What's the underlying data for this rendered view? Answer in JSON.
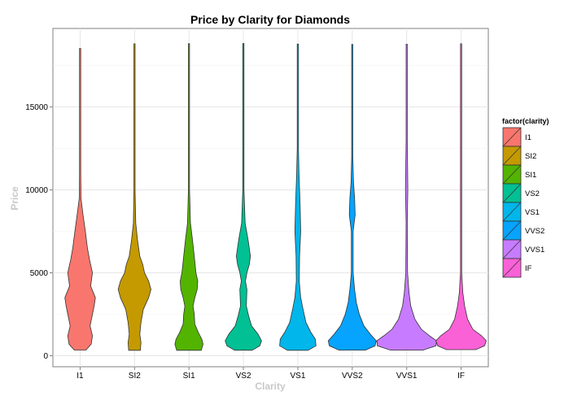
{
  "chart_data": {
    "type": "violin",
    "title": "Price by Clarity for Diamonds",
    "xlabel": "Clarity",
    "ylabel": "Price",
    "categories": [
      "I1",
      "SI2",
      "SI1",
      "VS2",
      "VS1",
      "VVS2",
      "VVS1",
      "IF"
    ],
    "yticks": [
      0,
      5000,
      10000,
      15000
    ],
    "ylim": [
      -700,
      19500
    ],
    "grid": true,
    "legend": {
      "title": "factor(clarity)",
      "position": "right",
      "entries": [
        "I1",
        "SI2",
        "SI1",
        "VS2",
        "VS1",
        "VVS2",
        "VVS1",
        "IF"
      ]
    },
    "series": [
      {
        "name": "I1",
        "color": "#F8766D",
        "min": 345,
        "max": 18531,
        "profile": [
          [
            345,
            0.2
          ],
          [
            700,
            0.38
          ],
          [
            1200,
            0.42
          ],
          [
            1800,
            0.34
          ],
          [
            2500,
            0.42
          ],
          [
            3000,
            0.48
          ],
          [
            3500,
            0.52
          ],
          [
            4200,
            0.36
          ],
          [
            5000,
            0.42
          ],
          [
            5800,
            0.32
          ],
          [
            6500,
            0.25
          ],
          [
            7500,
            0.18
          ],
          [
            8500,
            0.1
          ],
          [
            9500,
            0.03
          ],
          [
            11000,
            0.02
          ],
          [
            18531,
            0.02
          ]
        ]
      },
      {
        "name": "SI2",
        "color": "#C49A00",
        "min": 326,
        "max": 18804,
        "profile": [
          [
            326,
            0.2
          ],
          [
            800,
            0.22
          ],
          [
            1300,
            0.18
          ],
          [
            2000,
            0.22
          ],
          [
            2800,
            0.3
          ],
          [
            3500,
            0.48
          ],
          [
            4000,
            0.56
          ],
          [
            4500,
            0.48
          ],
          [
            5000,
            0.34
          ],
          [
            5500,
            0.28
          ],
          [
            6000,
            0.18
          ],
          [
            7000,
            0.1
          ],
          [
            8000,
            0.04
          ],
          [
            10000,
            0.02
          ],
          [
            18804,
            0.02
          ]
        ]
      },
      {
        "name": "SI1",
        "color": "#53B400",
        "min": 326,
        "max": 18818,
        "profile": [
          [
            326,
            0.42
          ],
          [
            700,
            0.48
          ],
          [
            1000,
            0.44
          ],
          [
            1400,
            0.32
          ],
          [
            1900,
            0.2
          ],
          [
            2500,
            0.18
          ],
          [
            3000,
            0.14
          ],
          [
            3500,
            0.2
          ],
          [
            4000,
            0.28
          ],
          [
            4500,
            0.3
          ],
          [
            5000,
            0.24
          ],
          [
            6000,
            0.18
          ],
          [
            7000,
            0.12
          ],
          [
            8000,
            0.05
          ],
          [
            10000,
            0.02
          ],
          [
            18818,
            0.02
          ]
        ]
      },
      {
        "name": "VS2",
        "color": "#00C094",
        "min": 334,
        "max": 18823,
        "profile": [
          [
            334,
            0.3
          ],
          [
            600,
            0.56
          ],
          [
            900,
            0.62
          ],
          [
            1300,
            0.5
          ],
          [
            1800,
            0.28
          ],
          [
            2400,
            0.18
          ],
          [
            3000,
            0.1
          ],
          [
            4000,
            0.12
          ],
          [
            4500,
            0.07
          ],
          [
            5000,
            0.12
          ],
          [
            5500,
            0.2
          ],
          [
            6000,
            0.24
          ],
          [
            7000,
            0.16
          ],
          [
            8000,
            0.06
          ],
          [
            10000,
            0.02
          ],
          [
            18823,
            0.02
          ]
        ]
      },
      {
        "name": "VS1",
        "color": "#00B6EB",
        "min": 327,
        "max": 18795,
        "profile": [
          [
            327,
            0.35
          ],
          [
            600,
            0.62
          ],
          [
            1000,
            0.6
          ],
          [
            1400,
            0.45
          ],
          [
            2000,
            0.28
          ],
          [
            2800,
            0.18
          ],
          [
            3500,
            0.1
          ],
          [
            4500,
            0.05
          ],
          [
            6000,
            0.06
          ],
          [
            7500,
            0.1
          ],
          [
            9000,
            0.08
          ],
          [
            11000,
            0.04
          ],
          [
            12500,
            0.02
          ],
          [
            18795,
            0.02
          ]
        ]
      },
      {
        "name": "VVS2",
        "color": "#06A4FF",
        "min": 336,
        "max": 18768,
        "profile": [
          [
            336,
            0.45
          ],
          [
            600,
            0.78
          ],
          [
            900,
            0.82
          ],
          [
            1300,
            0.62
          ],
          [
            1800,
            0.4
          ],
          [
            2500,
            0.24
          ],
          [
            3200,
            0.14
          ],
          [
            4000,
            0.08
          ],
          [
            5000,
            0.03
          ],
          [
            7500,
            0.03
          ],
          [
            8500,
            0.1
          ],
          [
            9500,
            0.08
          ],
          [
            10500,
            0.04
          ],
          [
            12000,
            0.02
          ],
          [
            18768,
            0.02
          ]
        ]
      },
      {
        "name": "VVS1",
        "color": "#C77CFF",
        "min": 336,
        "max": 18777,
        "profile": [
          [
            336,
            0.55
          ],
          [
            600,
            1.0
          ],
          [
            900,
            1.02
          ],
          [
            1200,
            0.78
          ],
          [
            1600,
            0.5
          ],
          [
            2200,
            0.28
          ],
          [
            3000,
            0.14
          ],
          [
            3800,
            0.08
          ],
          [
            5000,
            0.03
          ],
          [
            8000,
            0.02
          ],
          [
            10000,
            0.04
          ],
          [
            11500,
            0.03
          ],
          [
            13000,
            0.02
          ],
          [
            18777,
            0.02
          ]
        ]
      },
      {
        "name": "IF",
        "color": "#FB61D7",
        "min": 369,
        "max": 18806,
        "profile": [
          [
            369,
            0.5
          ],
          [
            600,
            0.8
          ],
          [
            900,
            0.86
          ],
          [
            1200,
            0.7
          ],
          [
            1600,
            0.4
          ],
          [
            2200,
            0.22
          ],
          [
            3000,
            0.12
          ],
          [
            3800,
            0.06
          ],
          [
            5000,
            0.02
          ],
          [
            18806,
            0.02
          ]
        ]
      }
    ]
  }
}
